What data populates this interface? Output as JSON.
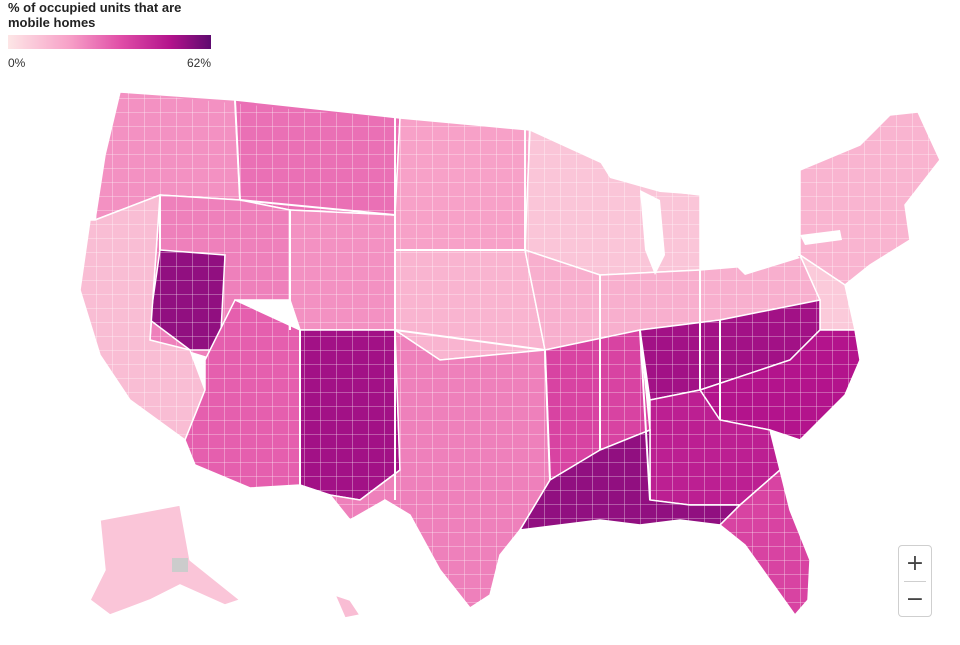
{
  "legend": {
    "title_line1": "% of occupied units that are",
    "title_line2": "mobile homes",
    "min_label": "0%",
    "max_label": "62%",
    "min_value": 0,
    "max_value": 62,
    "colors": [
      "#fde6e6",
      "#f7a1c8",
      "#e14fa8",
      "#b3138c",
      "#5e0a6f"
    ]
  },
  "zoom": {
    "in_label": "+",
    "out_label": "−"
  },
  "regions": [
    {
      "id": "pacific-northwest",
      "level": 0.3
    },
    {
      "id": "north-rockies",
      "level": 0.4
    },
    {
      "id": "northern-plains",
      "level": 0.25
    },
    {
      "id": "upper-midwest",
      "level": 0.12
    },
    {
      "id": "new-england",
      "level": 0.18
    },
    {
      "id": "great-basin",
      "level": 0.35
    },
    {
      "id": "nevada-interior",
      "level": 0.85
    },
    {
      "id": "california",
      "level": 0.15
    },
    {
      "id": "colorado-plateau",
      "level": 0.3
    },
    {
      "id": "central-plains",
      "level": 0.18
    },
    {
      "id": "ohio-valley",
      "level": 0.2
    },
    {
      "id": "mid-atlantic",
      "level": 0.1
    },
    {
      "id": "arizona",
      "level": 0.45
    },
    {
      "id": "new-mexico",
      "level": 0.8
    },
    {
      "id": "texas",
      "level": 0.35
    },
    {
      "id": "south-central",
      "level": 0.55
    },
    {
      "id": "appalachia",
      "level": 0.8
    },
    {
      "id": "carolinas",
      "level": 0.75
    },
    {
      "id": "deep-south",
      "level": 0.7
    },
    {
      "id": "gulf-coast",
      "level": 0.85
    },
    {
      "id": "florida",
      "level": 0.55
    },
    {
      "id": "alaska",
      "level": 0.12
    },
    {
      "id": "hawaii",
      "level": 0.15
    }
  ]
}
